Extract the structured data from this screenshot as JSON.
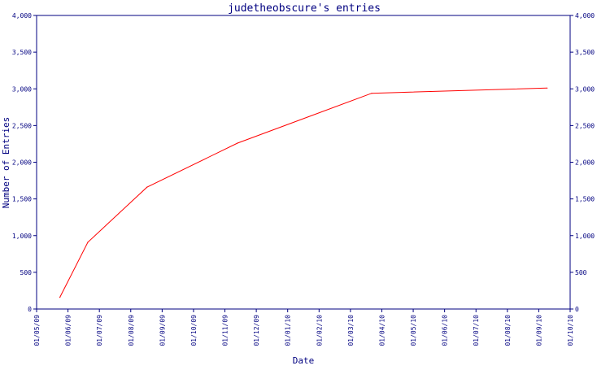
{
  "chart_data": {
    "type": "line",
    "title": "judetheobscure's entries",
    "xlabel": "Date",
    "ylabel": "Number of Entries",
    "ylim": [
      0,
      4000
    ],
    "y_ticks": [
      "0",
      "500",
      "1,000",
      "1,500",
      "2,000",
      "2,500",
      "3,000",
      "3,500",
      "4,000"
    ],
    "x_ticks": [
      "01/05/09",
      "01/06/09",
      "01/07/09",
      "01/08/09",
      "01/09/09",
      "01/10/09",
      "01/11/09",
      "01/12/09",
      "01/01/10",
      "01/02/10",
      "01/03/10",
      "01/04/10",
      "01/05/10",
      "01/06/10",
      "01/07/10",
      "01/08/10",
      "01/09/10",
      "01/10/10"
    ],
    "series": [
      {
        "color": "#ff0000",
        "points": [
          {
            "x": "2009-05-24",
            "y": 160
          },
          {
            "x": "2009-06-20",
            "y": 910
          },
          {
            "x": "2009-08-17",
            "y": 1660
          },
          {
            "x": "2009-11-13",
            "y": 2260
          },
          {
            "x": "2010-03-22",
            "y": 2940
          },
          {
            "x": "2010-09-09",
            "y": 3010
          }
        ]
      }
    ],
    "grid": false,
    "right_axis": true,
    "colors": {
      "axis": "#000080",
      "frame": "#000080",
      "line": "#ff0000"
    }
  }
}
